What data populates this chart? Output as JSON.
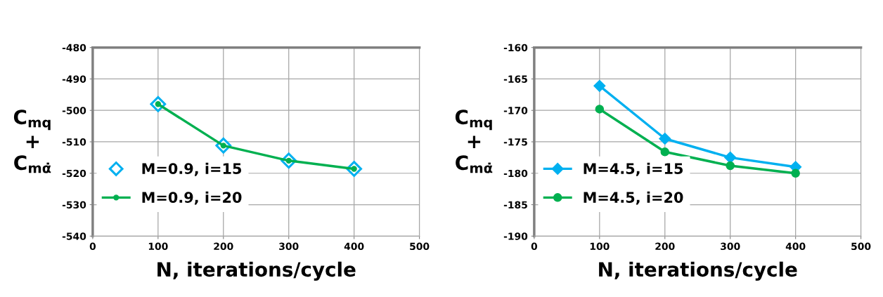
{
  "chart_data": [
    {
      "type": "line",
      "xlabel": "N, iterations/cycle",
      "ylabel": "C$_{mq}$\n+\nC$_{mα̇}$",
      "x": [
        100,
        200,
        300,
        400
      ],
      "xlim": [
        0,
        500
      ],
      "xticks": [
        0,
        100,
        200,
        300,
        400,
        500
      ],
      "ylim": [
        -540,
        -480
      ],
      "yticks": [
        -540,
        -530,
        -520,
        -510,
        -500,
        -490,
        -480
      ],
      "grid": true,
      "legend": "left",
      "series": [
        {
          "name": "M=0.9, i=15",
          "type": "scatter",
          "marker": "diamond",
          "color": "#00b0f0",
          "values": [
            -498,
            -511.2,
            -516,
            -518.6
          ]
        },
        {
          "name": "M=0.9, i=20",
          "marker": "circle",
          "color": "#00b050",
          "values": [
            -498,
            -511.2,
            -516,
            -518.6
          ]
        }
      ]
    },
    {
      "type": "line",
      "xlabel": "N, iterations/cycle",
      "ylabel": "C$_{mq}$\n+\nC$_{mα̇}$",
      "x": [
        100,
        200,
        300,
        400
      ],
      "xlim": [
        0,
        500
      ],
      "xticks": [
        0,
        100,
        200,
        300,
        400,
        500
      ],
      "ylim": [
        -190,
        -160
      ],
      "yticks": [
        -190,
        -185,
        -180,
        -175,
        -170,
        -165,
        -160
      ],
      "grid": true,
      "legend": "left",
      "series": [
        {
          "name": "M=4.5, i=15",
          "marker": "diamond",
          "color": "#00b0f0",
          "values": [
            -166.1,
            -174.5,
            -177.5,
            -179.0
          ]
        },
        {
          "name": "M=4.5, i=20",
          "marker": "circle",
          "color": "#00b050",
          "values": [
            -169.8,
            -176.6,
            -178.8,
            -180.0
          ]
        }
      ]
    }
  ]
}
